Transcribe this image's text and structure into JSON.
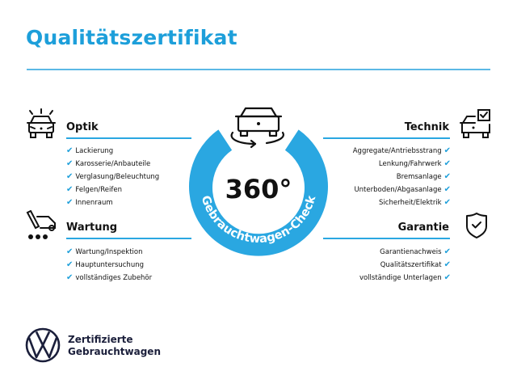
{
  "title": "Qualitätszertifikat",
  "colors": {
    "accent": "#1d9fda",
    "ring": "#2aa7e1",
    "brand": "#1b1f3b"
  },
  "center": {
    "big": "360°",
    "ring_text": "Gebrauchtwagen-Check",
    "icon": "car-rotate-icon"
  },
  "sections": {
    "optik": {
      "heading": "Optik",
      "icon": "car-lights-icon",
      "items": [
        "Lackierung",
        "Karosserie/Anbauteile",
        "Verglasung/Beleuchtung",
        "Felgen/Reifen",
        "Innenraum"
      ]
    },
    "wartung": {
      "heading": "Wartung",
      "icon": "service-tools-icon",
      "items": [
        "Wartung/Inspektion",
        "Hauptuntersuchung",
        "vollständiges Zubehör"
      ]
    },
    "technik": {
      "heading": "Technik",
      "icon": "car-checklist-icon",
      "items": [
        "Aggregate/Antriebsstrang",
        "Lenkung/Fahrwerk",
        "Bremsanlage",
        "Unterboden/Abgasanlage",
        "Sicherheit/Elektrik"
      ]
    },
    "garantie": {
      "heading": "Garantie",
      "icon": "shield-check-icon",
      "items": [
        "Garantienachweis",
        "Qualitätszertifikat",
        "vollständige Unterlagen"
      ]
    }
  },
  "check_mark": "✔",
  "brand": {
    "line1": "Zertifizierte",
    "line2": "Gebrauchtwagen",
    "logo": "vw-logo"
  }
}
